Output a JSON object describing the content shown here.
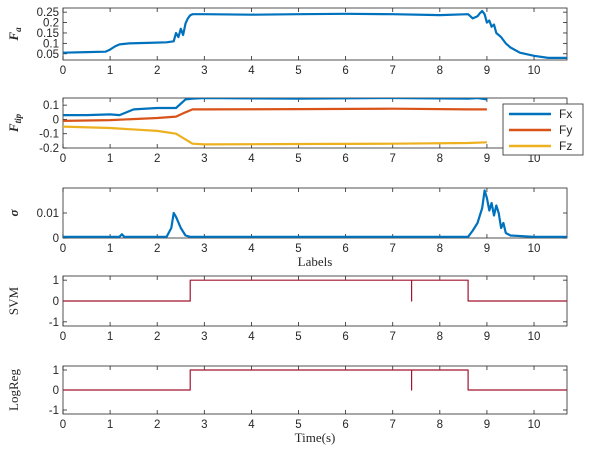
{
  "figure": {
    "panel_ylabels": {
      "fa": "F",
      "fa_sub": "a",
      "ftip": "F",
      "ftip_sub": "tip",
      "sigma": "σ",
      "svm": "SVM",
      "logreg": "LogReg"
    },
    "xlabels": {
      "sigma": "Labels",
      "logreg": "Time(s)"
    },
    "legend": [
      "Fx",
      "Fy",
      "Fz"
    ]
  },
  "colors": {
    "blue": "#0072BD",
    "orange": "#D95319",
    "yellow": "#EDB120",
    "darkred": "#A2142F",
    "axis": "#262626",
    "grid": "#e6e6e6"
  },
  "chart_data": [
    {
      "type": "line",
      "id": "fa",
      "ylabel": "F_a",
      "xlim": [
        0,
        10.7
      ],
      "ylim": [
        0.02,
        0.27
      ],
      "xticks": [
        0,
        1,
        2,
        3,
        4,
        5,
        6,
        7,
        8,
        9,
        10
      ],
      "yticks": [
        0.05,
        0.1,
        0.15,
        0.2,
        0.25
      ],
      "ytick_labels": [
        "0.05",
        "0.1",
        "0.15",
        "0.2",
        "0.25"
      ],
      "series": [
        {
          "color": "blue",
          "x": [
            0,
            0.5,
            0.9,
            1.0,
            1.1,
            1.2,
            1.4,
            1.8,
            2.2,
            2.35,
            2.4,
            2.45,
            2.5,
            2.55,
            2.6,
            2.65,
            2.7,
            2.75,
            3.0,
            4.0,
            5.0,
            6.0,
            7.0,
            8.0,
            8.6,
            8.7,
            8.8,
            8.85,
            8.9,
            8.95,
            9.0,
            9.05,
            9.1,
            9.15,
            9.2,
            9.3,
            9.4,
            9.5,
            9.7,
            10.0,
            10.3,
            10.7
          ],
          "y": [
            0.055,
            0.058,
            0.06,
            0.07,
            0.085,
            0.095,
            0.1,
            0.102,
            0.105,
            0.11,
            0.15,
            0.13,
            0.17,
            0.14,
            0.195,
            0.22,
            0.235,
            0.24,
            0.24,
            0.238,
            0.24,
            0.242,
            0.24,
            0.236,
            0.24,
            0.22,
            0.23,
            0.245,
            0.255,
            0.24,
            0.2,
            0.21,
            0.18,
            0.19,
            0.15,
            0.13,
            0.1,
            0.08,
            0.055,
            0.04,
            0.03,
            0.03
          ]
        }
      ]
    },
    {
      "type": "line",
      "id": "ftip",
      "ylabel": "F_tip",
      "xlim": [
        0,
        10.7
      ],
      "ylim": [
        -0.2,
        0.15
      ],
      "xticks": [
        0,
        1,
        2,
        3,
        4,
        5,
        6,
        7,
        8,
        9,
        10
      ],
      "yticks": [
        -0.2,
        -0.1,
        0,
        0.1
      ],
      "ytick_labels": [
        "-0.2",
        "-0.1",
        "0",
        "0.1"
      ],
      "series": [
        {
          "name": "Fx",
          "color": "blue",
          "x": [
            0,
            0.5,
            1.0,
            1.2,
            1.5,
            2.0,
            2.4,
            2.6,
            2.75,
            3.0,
            5.0,
            7.0,
            8.6,
            8.8,
            9.0
          ],
          "y": [
            0.03,
            0.03,
            0.035,
            0.03,
            0.07,
            0.08,
            0.08,
            0.14,
            0.145,
            0.15,
            0.145,
            0.15,
            0.145,
            0.15,
            0.14
          ]
        },
        {
          "name": "Fy",
          "color": "orange",
          "x": [
            0,
            1.0,
            2.0,
            2.4,
            2.6,
            2.75,
            3.0,
            5.0,
            7.0,
            8.6,
            9.0
          ],
          "y": [
            -0.01,
            -0.005,
            0.01,
            0.02,
            0.05,
            0.07,
            0.07,
            0.072,
            0.075,
            0.07,
            0.07
          ]
        },
        {
          "name": "Fz",
          "color": "yellow",
          "x": [
            0,
            1.0,
            2.0,
            2.4,
            2.6,
            2.75,
            3.0,
            5.0,
            7.0,
            8.6,
            9.0
          ],
          "y": [
            -0.05,
            -0.06,
            -0.08,
            -0.1,
            -0.14,
            -0.17,
            -0.175,
            -0.172,
            -0.17,
            -0.165,
            -0.16
          ]
        }
      ]
    },
    {
      "type": "line",
      "id": "sigma",
      "ylabel": "σ",
      "xlabel": "Labels",
      "xlim": [
        0,
        10.7
      ],
      "ylim": [
        0,
        0.02
      ],
      "xticks": [
        0,
        1,
        2,
        3,
        4,
        5,
        6,
        7,
        8,
        9,
        10
      ],
      "yticks": [
        0,
        0.01
      ],
      "ytick_labels": [
        "0",
        "0.01"
      ],
      "series": [
        {
          "color": "blue",
          "x": [
            0,
            1.2,
            1.25,
            1.3,
            2.2,
            2.3,
            2.35,
            2.4,
            2.5,
            2.6,
            2.7,
            3.0,
            5.0,
            8.6,
            8.7,
            8.8,
            8.9,
            8.95,
            9.0,
            9.05,
            9.1,
            9.15,
            9.2,
            9.25,
            9.3,
            9.35,
            9.4,
            9.5,
            10.0,
            10.7
          ],
          "y": [
            0.0005,
            0.0005,
            0.0015,
            0.0005,
            0.0005,
            0.004,
            0.01,
            0.0085,
            0.004,
            0.001,
            0.0005,
            0.0005,
            0.0005,
            0.0005,
            0.003,
            0.006,
            0.012,
            0.019,
            0.016,
            0.011,
            0.014,
            0.009,
            0.013,
            0.01,
            0.004,
            0.006,
            0.002,
            0.001,
            0.0005,
            0.0005
          ]
        }
      ]
    },
    {
      "type": "line",
      "id": "svm",
      "ylabel": "SVM",
      "xlim": [
        0,
        10.7
      ],
      "ylim": [
        -1.2,
        1.2
      ],
      "xticks": [
        0,
        1,
        2,
        3,
        4,
        5,
        6,
        7,
        8,
        9,
        10
      ],
      "yticks": [
        -1,
        0,
        1
      ],
      "ytick_labels": [
        "-1",
        "0",
        "1"
      ],
      "series": [
        {
          "color": "darkred",
          "x": [
            0,
            2.7,
            2.7,
            7.4,
            7.4,
            7.4,
            8.6,
            8.6,
            10.7
          ],
          "y": [
            0,
            0,
            1,
            1,
            0,
            1,
            1,
            0,
            0
          ]
        }
      ]
    },
    {
      "type": "line",
      "id": "logreg",
      "ylabel": "LogReg",
      "xlabel": "Time(s)",
      "xlim": [
        0,
        10.7
      ],
      "ylim": [
        -1.2,
        1.2
      ],
      "xticks": [
        0,
        1,
        2,
        3,
        4,
        5,
        6,
        7,
        8,
        9,
        10
      ],
      "yticks": [
        -1,
        0,
        1
      ],
      "ytick_labels": [
        "-1",
        "0",
        "1"
      ],
      "series": [
        {
          "color": "darkred",
          "x": [
            0,
            2.7,
            2.7,
            7.4,
            7.4,
            7.4,
            8.6,
            8.6,
            10.7
          ],
          "y": [
            0,
            0,
            1,
            1,
            0,
            1,
            1,
            0,
            0
          ]
        }
      ]
    }
  ]
}
